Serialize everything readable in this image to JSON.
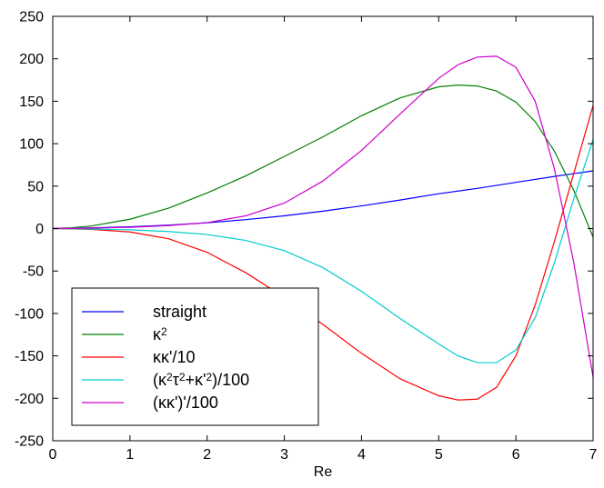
{
  "chart_data": {
    "type": "line",
    "title": "",
    "xlabel": "Re",
    "ylabel": "",
    "xlim": [
      0,
      7
    ],
    "ylim": [
      -250,
      250
    ],
    "xticks": [
      "0",
      "1",
      "2",
      "3",
      "4",
      "5",
      "6",
      "7"
    ],
    "yticks": [
      "250",
      "200",
      "150",
      "100",
      "50",
      "0",
      "-50",
      "-100",
      "-150",
      "-200",
      "-250"
    ],
    "grid": false,
    "legend_position": "bottom-left",
    "series": [
      {
        "name": "straight",
        "legend_text": [
          "straight"
        ],
        "color": "#0000ff",
        "x": [
          0,
          0.5,
          1,
          1.5,
          2,
          2.5,
          3,
          3.5,
          4,
          4.5,
          5,
          5.5,
          6,
          6.5,
          7
        ],
        "y": [
          0,
          0.8,
          2.1,
          4,
          6.8,
          10.5,
          15,
          20.5,
          26.7,
          33.6,
          41,
          47.3,
          54.4,
          61.4,
          68
        ]
      },
      {
        "name": "κ^2",
        "legend_text": [
          "κ",
          "2"
        ],
        "color": "#008000",
        "x": [
          0,
          0.25,
          0.5,
          1,
          1.5,
          2,
          2.5,
          3,
          3.5,
          4,
          4.5,
          5,
          5.25,
          5.5,
          5.75,
          6,
          6.25,
          6.5,
          6.75,
          7
        ],
        "y": [
          0,
          1,
          3,
          11,
          24,
          42,
          62,
          85,
          108,
          133,
          154,
          167,
          169,
          168,
          162,
          149,
          126,
          91,
          45,
          -10
        ]
      },
      {
        "name": "κκ'/10",
        "legend_text": [
          "κκ'/10"
        ],
        "color": "#ff0000",
        "x": [
          0,
          0.5,
          1,
          1.5,
          2,
          2.5,
          3,
          3.5,
          4,
          4.5,
          5,
          5.25,
          5.5,
          5.75,
          6,
          6.25,
          6.5,
          6.75,
          7
        ],
        "y": [
          0,
          -1,
          -4,
          -12,
          -28,
          -52,
          -81,
          -113,
          -147,
          -177,
          -197,
          -202,
          -201,
          -187,
          -150,
          -90,
          -15,
          65,
          145
        ]
      },
      {
        "name": "(κ^2τ^2+κ'^2)/100",
        "legend_text": [
          "(κ",
          "2",
          "τ",
          "2",
          "+κ'",
          "2",
          ")/100"
        ],
        "color": "#00cccc",
        "x": [
          0,
          0.5,
          1,
          1.5,
          2,
          2.5,
          3,
          3.5,
          4,
          4.5,
          5,
          5.25,
          5.5,
          5.75,
          6,
          6.25,
          6.5,
          6.75,
          7
        ],
        "y": [
          0,
          -0.5,
          -1.5,
          -3.5,
          -7,
          -14,
          -26,
          -46,
          -74,
          -106,
          -136,
          -150,
          -158,
          -158,
          -143,
          -105,
          -40,
          35,
          105
        ]
      },
      {
        "name": "(κκ')'/100",
        "legend_text": [
          "(κκ')'/100"
        ],
        "color": "#cc00cc",
        "x": [
          0,
          0.5,
          1,
          1.5,
          2,
          2.5,
          3,
          3.5,
          4,
          4.5,
          5,
          5.25,
          5.5,
          5.75,
          6,
          6.25,
          6.5,
          6.75,
          7
        ],
        "y": [
          0,
          0.5,
          1.5,
          3.5,
          7,
          15,
          30,
          56,
          92,
          135,
          177,
          193,
          202,
          203,
          190,
          150,
          70,
          -40,
          -175
        ]
      }
    ]
  }
}
